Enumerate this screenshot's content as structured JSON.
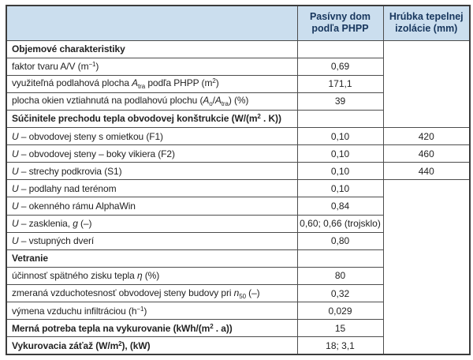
{
  "colors": {
    "header_bg": "#cbdeee",
    "header_text": "#17365d",
    "border": "#4d4d4d",
    "outer_border": "#3c3c3c",
    "text": "#232323"
  },
  "table": {
    "header": {
      "col1": "",
      "col2": "Pasívny dom podľa PHPP",
      "col3": "Hrúbka tepelnej izolácie (mm)"
    },
    "rows": [
      {
        "bold": true,
        "label": [
          {
            "t": "Objemové charakteristiky"
          }
        ],
        "value": ""
      },
      {
        "bold": false,
        "label": [
          {
            "t": "faktor tvaru A/V (m"
          },
          {
            "t": "−1",
            "s": "sup"
          },
          {
            "t": ")"
          }
        ],
        "value": "0,69"
      },
      {
        "bold": false,
        "label": [
          {
            "t": "využiteľná podlahová plocha "
          },
          {
            "t": "A",
            "s": "i"
          },
          {
            "t": "tra",
            "s": "sub"
          },
          {
            "t": " podľa PHPP (m"
          },
          {
            "t": "2",
            "s": "sup"
          },
          {
            "t": ")"
          }
        ],
        "value": "171,1"
      },
      {
        "bold": false,
        "label": [
          {
            "t": "plocha okien vztiahnutá na podlahovú plochu ("
          },
          {
            "t": "A",
            "s": "i"
          },
          {
            "t": "o",
            "s": "sub"
          },
          {
            "t": "/"
          },
          {
            "t": "A",
            "s": "i"
          },
          {
            "t": "tra",
            "s": "sub"
          },
          {
            "t": ") (%)"
          }
        ],
        "value": "39"
      },
      {
        "bold": true,
        "label": [
          {
            "t": "Súčinitele prechodu tepla obvodovej konštrukcie (W/(m"
          },
          {
            "t": "2",
            "s": "sup"
          },
          {
            "t": " . K))"
          }
        ],
        "value": ""
      },
      {
        "bold": false,
        "label": [
          {
            "t": "U",
            "s": "i"
          },
          {
            "t": " – obvodovej steny s omietkou (F1)"
          }
        ],
        "value": "0,10"
      },
      {
        "bold": false,
        "label": [
          {
            "t": "U",
            "s": "i"
          },
          {
            "t": " – obvodovej steny – boky vikiera (F2)"
          }
        ],
        "value": "0,10"
      },
      {
        "bold": false,
        "label": [
          {
            "t": "U",
            "s": "i"
          },
          {
            "t": " – strechy podkrovia (S1)"
          }
        ],
        "value": "0,10"
      },
      {
        "bold": false,
        "label": [
          {
            "t": "U",
            "s": "i"
          },
          {
            "t": " – podlahy nad terénom"
          }
        ],
        "value": "0,10"
      },
      {
        "bold": false,
        "label": [
          {
            "t": "U",
            "s": "i"
          },
          {
            "t": " – okenného rámu AlphaWin"
          }
        ],
        "value": "0,84"
      },
      {
        "bold": false,
        "label": [
          {
            "t": "U",
            "s": "i"
          },
          {
            "t": " – zasklenia, "
          },
          {
            "t": "g",
            "s": "i"
          },
          {
            "t": " (–)"
          }
        ],
        "value": "0,60; 0,66 (trojsklo)"
      },
      {
        "bold": false,
        "label": [
          {
            "t": "U",
            "s": "i"
          },
          {
            "t": " – vstupných dverí"
          }
        ],
        "value": "0,80"
      },
      {
        "bold": true,
        "label": [
          {
            "t": "Vetranie"
          }
        ],
        "value": ""
      },
      {
        "bold": false,
        "label": [
          {
            "t": "účinnosť spätného zisku tepla "
          },
          {
            "t": "η",
            "s": "i"
          },
          {
            "t": " (%)"
          }
        ],
        "value": "80"
      },
      {
        "bold": false,
        "label": [
          {
            "t": "zmeraná vzduchotesnosť obvodovej steny budovy pri "
          },
          {
            "t": "n",
            "s": "i"
          },
          {
            "t": "50",
            "s": "sub"
          },
          {
            "t": " (–)"
          }
        ],
        "value": "0,32"
      },
      {
        "bold": false,
        "label": [
          {
            "t": "výmena vzduchu infiltráciou (h"
          },
          {
            "t": "−1",
            "s": "sup"
          },
          {
            "t": ")"
          }
        ],
        "value": "0,029"
      },
      {
        "bold": true,
        "label": [
          {
            "t": "Merná potreba tepla na vykurovanie (kWh/(m"
          },
          {
            "t": "2",
            "s": "sup"
          },
          {
            "t": " . a))"
          }
        ],
        "value": "15"
      },
      {
        "bold": true,
        "label": [
          {
            "t": "Vykurovacia záťaž (W/m"
          },
          {
            "t": "2",
            "s": "sup"
          },
          {
            "t": "), (kW)"
          }
        ],
        "value": "18; 3,1"
      }
    ],
    "col3_cells": [
      {
        "start": 0,
        "span": 5,
        "text": ""
      },
      {
        "start": 5,
        "span": 1,
        "text": "420"
      },
      {
        "start": 6,
        "span": 1,
        "text": "460"
      },
      {
        "start": 7,
        "span": 1,
        "text": "440"
      },
      {
        "start": 8,
        "span": 10,
        "text": ""
      }
    ]
  }
}
